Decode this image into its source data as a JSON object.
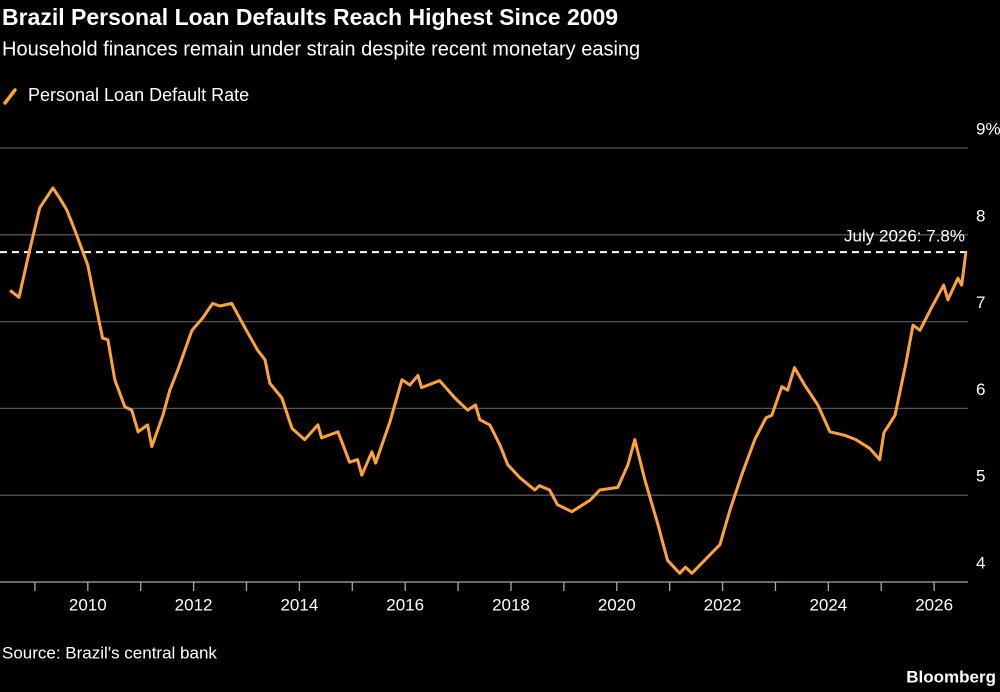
{
  "chart_data": {
    "type": "line",
    "title": "Brazil Personal Loan Defaults Reach Highest Since 2009",
    "subtitle": "Household finances remain under strain despite recent monetary easing",
    "source": "Source: Brazil's central bank",
    "brand": "Bloomberg",
    "xlim": [
      2008.34,
      2026.64
    ],
    "xticks": [
      2010,
      2012,
      2014,
      2016,
      2018,
      2020,
      2022,
      2024,
      2026
    ],
    "minor_xticks": [
      2009,
      2011,
      2013,
      2015,
      2017,
      2019,
      2021,
      2023,
      2025
    ],
    "ylim": [
      4,
      9
    ],
    "yticks": [
      4,
      5,
      6,
      7,
      8,
      {
        "value": 9,
        "label": "9%"
      }
    ],
    "grid": true,
    "legend": "top-left",
    "annotation": {
      "text": "July 2026: 7.8%",
      "value": 7.8
    },
    "series": [
      {
        "name": "Personal Loan Default Rate",
        "color": "#ffa23a",
        "x": [
          2008.53,
          2008.7,
          2008.9,
          2009.09,
          2009.34,
          2009.47,
          2009.6,
          2009.75,
          2010.0,
          2010.13,
          2010.28,
          2010.38,
          2010.51,
          2010.7,
          2010.83,
          2010.95,
          2011.13,
          2011.21,
          2011.42,
          2011.55,
          2011.7,
          2011.97,
          2012.17,
          2012.36,
          2012.5,
          2012.72,
          2012.97,
          2013.21,
          2013.35,
          2013.44,
          2013.67,
          2013.86,
          2014.1,
          2014.35,
          2014.42,
          2014.73,
          2014.95,
          2015.1,
          2015.18,
          2015.37,
          2015.44,
          2015.71,
          2015.94,
          2016.09,
          2016.24,
          2016.31,
          2016.65,
          2016.94,
          2017.18,
          2017.33,
          2017.41,
          2017.6,
          2017.79,
          2017.94,
          2018.17,
          2018.45,
          2018.54,
          2018.73,
          2018.88,
          2019.15,
          2019.49,
          2019.68,
          2020.02,
          2020.21,
          2020.34,
          2020.53,
          2020.78,
          2020.96,
          2021.19,
          2021.3,
          2021.42,
          2021.66,
          2021.95,
          2022.14,
          2022.36,
          2022.61,
          2022.82,
          2022.93,
          2023.12,
          2023.23,
          2023.36,
          2023.55,
          2023.8,
          2024.03,
          2024.31,
          2024.52,
          2024.78,
          2024.97,
          2025.05,
          2025.26,
          2025.46,
          2025.6,
          2025.73,
          2025.95,
          2026.18,
          2026.26,
          2026.45,
          2026.52,
          2026.6
        ],
        "values": [
          7.36,
          7.28,
          7.82,
          8.31,
          8.54,
          8.42,
          8.29,
          8.06,
          7.65,
          7.25,
          6.81,
          6.79,
          6.33,
          6.02,
          5.98,
          5.73,
          5.81,
          5.56,
          5.92,
          6.21,
          6.44,
          6.9,
          7.04,
          7.21,
          7.18,
          7.21,
          6.93,
          6.67,
          6.56,
          6.29,
          6.12,
          5.77,
          5.64,
          5.81,
          5.66,
          5.73,
          5.38,
          5.41,
          5.23,
          5.5,
          5.37,
          5.84,
          6.33,
          6.27,
          6.38,
          6.24,
          6.32,
          6.12,
          5.98,
          6.04,
          5.87,
          5.81,
          5.58,
          5.35,
          5.2,
          5.06,
          5.11,
          5.06,
          4.89,
          4.81,
          4.94,
          5.06,
          5.09,
          5.35,
          5.64,
          5.18,
          4.66,
          4.25,
          4.1,
          4.17,
          4.1,
          4.25,
          4.43,
          4.83,
          5.23,
          5.64,
          5.89,
          5.92,
          6.25,
          6.21,
          6.47,
          6.27,
          6.04,
          5.73,
          5.69,
          5.64,
          5.54,
          5.41,
          5.72,
          5.92,
          6.5,
          6.96,
          6.9,
          7.16,
          7.42,
          7.25,
          7.5,
          7.42,
          7.8
        ]
      }
    ]
  }
}
